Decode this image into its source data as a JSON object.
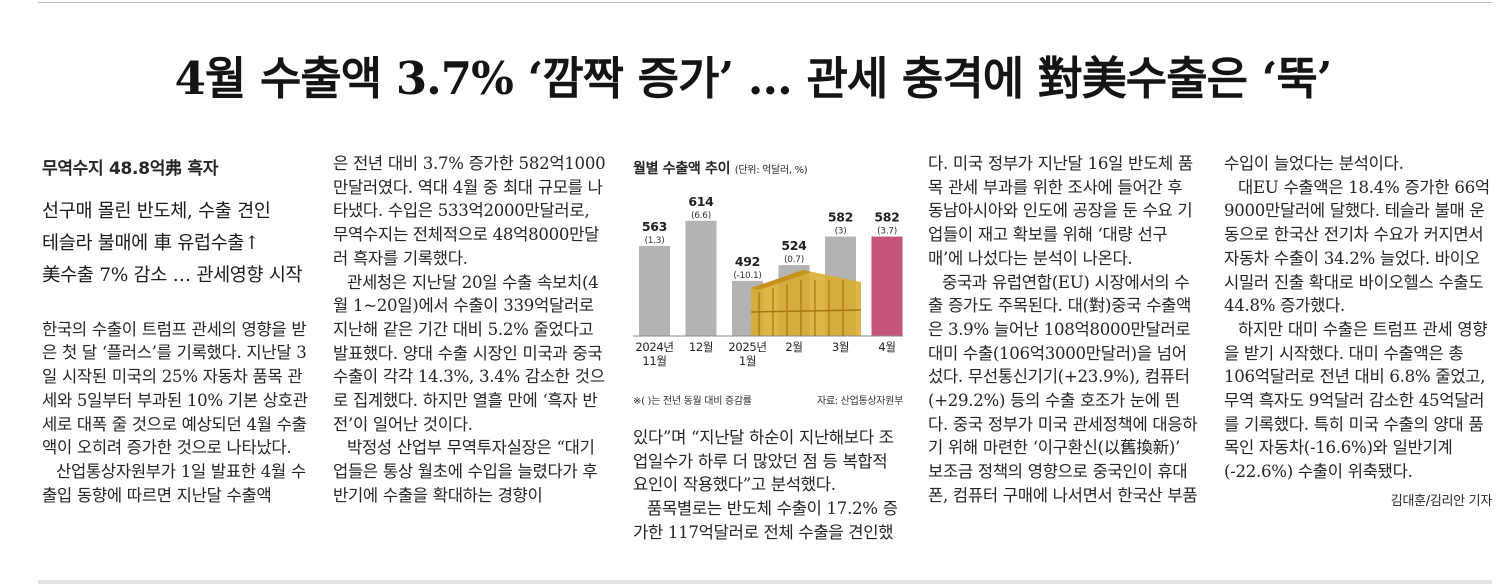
{
  "headline": "4월 수출액 3.7% ‘깜짝 증가’ … 관세 충격에 對美수출은 ‘뚝’",
  "col1": {
    "subhead1": "무역수지 48.8억弗 흑자",
    "subhead2_l1": "선구매 몰린 반도체, 수출 견인",
    "subhead2_l2": "테슬라 불매에 車 유럽수출↑",
    "subhead2_l3": "美수출 7% 감소 … 관세영향 시작",
    "p1": "한국의 수출이 트럼프 관세의 영향을 받은 첫 달 ‘플러스’를 기록했다. 지난달 3일 시작된 미국의 25% 자동차 품목 관세와 5일부터 부과된 10% 기본 상호관세로 대폭 줄 것으로 예상되던 4월 수출액이 오히려 증가한 것으로 나타났다.",
    "p2": "산업통상자원부가 1일 발표한 4월 수출입 동향에 따르면 지난달 수출액"
  },
  "col2": {
    "p1": "은 전년 대비 3.7% 증가한 582억1000만달러였다. 역대 4월 중 최대 규모를 나타냈다. 수입은 533억2000만달러로, 무역수지는 전체적으로 48억8000만달러 흑자를 기록했다.",
    "p2": "관세청은 지난달 20일 수출 속보치(4월 1~20일)에서 수출이 339억달러로 지난해 같은 기간 대비 5.2% 줄었다고 발표했다. 양대 수출 시장인 미국과 중국 수출이 각각 14.3%, 3.4% 감소한 것으로 집계했다. 하지만 열흘 만에 ‘흑자 반전’이 일어난 것이다.",
    "p3": "박정성 산업부 무역투자실장은 “대기업들은 통상 월초에 수입을 늘렸다가 후반기에 수출을 확대하는 경향이"
  },
  "col3": {
    "p1": "있다”며 “지난달 하순이 지난해보다 조업일수가 하루 더 많았던 점 등 복합적 요인이 작용했다”고 분석했다.",
    "p2": "품목별로는 반도체 수출이 17.2% 증가한 117억달러로 전체 수출을 견인했"
  },
  "col4": {
    "p1": "다. 미국 정부가 지난달 16일 반도체 품목 관세 부과를 위한 조사에 들어간 후 동남아시아와 인도에 공장을 둔 수요 기업들이 재고 확보를 위해 ‘대량 선구매’에 나섰다는 분석이 나온다.",
    "p2": "중국과 유럽연합(EU) 시장에서의 수출 증가도 주목된다. 대(對)중국 수출액은 3.9% 늘어난 108억8000만달러로 대미 수출(106억3000만달러)을 넘어섰다. 무선통신기기(+23.9%), 컴퓨터(+29.2%) 등의 수출 호조가 눈에 띈다. 중국 정부가 미국 관세정책에 대응하기 위해 마련한 ‘이구환신(以舊換新)’ 보조금 정책의 영향으로 중국인이 휴대폰, 컴퓨터 구매에 나서면서 한국산 부품"
  },
  "col5": {
    "p1": "수입이 늘었다는 분석이다.",
    "p2": "대EU 수출액은 18.4% 증가한 66억9000만달러에 달했다. 테슬라 불매 운동으로 한국산 전기차 수요가 커지면서 자동차 수출이 34.2% 늘었다. 바이오시밀러 진출 확대로 바이오헬스 수출도 44.8% 증가했다.",
    "p3": "하지만 대미 수출은 트럼프 관세 영향을 받기 시작했다. 대미 수출액은 총 106억달러로 전년 대비 6.8% 줄었고, 무역 흑자도 9억달러 감소한 45억달러를 기록했다. 특히 미국 수출의 양대 품목인 자동차(-16.6%)와 일반기계(-22.6%) 수출이 위축됐다.",
    "byline": "김대훈/김리안 기자"
  },
  "chart_data": {
    "type": "bar",
    "title": "월별 수출액 추이",
    "unit": "(단위: 억달러, %)",
    "categories": [
      [
        "2024년",
        "11월"
      ],
      [
        "12월"
      ],
      [
        "2025년",
        "1월"
      ],
      [
        "2월"
      ],
      [
        "3월"
      ],
      [
        "4월"
      ]
    ],
    "values": [
      563,
      614,
      492,
      524,
      582,
      582
    ],
    "growth_labels": [
      "(1.3)",
      "(6.6)",
      "(-10.1)",
      "(0.7)",
      "(3)",
      "(3.7)"
    ],
    "ylim": [
      380,
      640
    ],
    "colors": {
      "default": "#b3b3b3",
      "highlight": "#c4547a",
      "container": "#d9ab2e"
    },
    "highlight_index": 5,
    "note": "※( )는 전년 동월 대비 증감률",
    "source": "자료: 산업통상자원부"
  }
}
